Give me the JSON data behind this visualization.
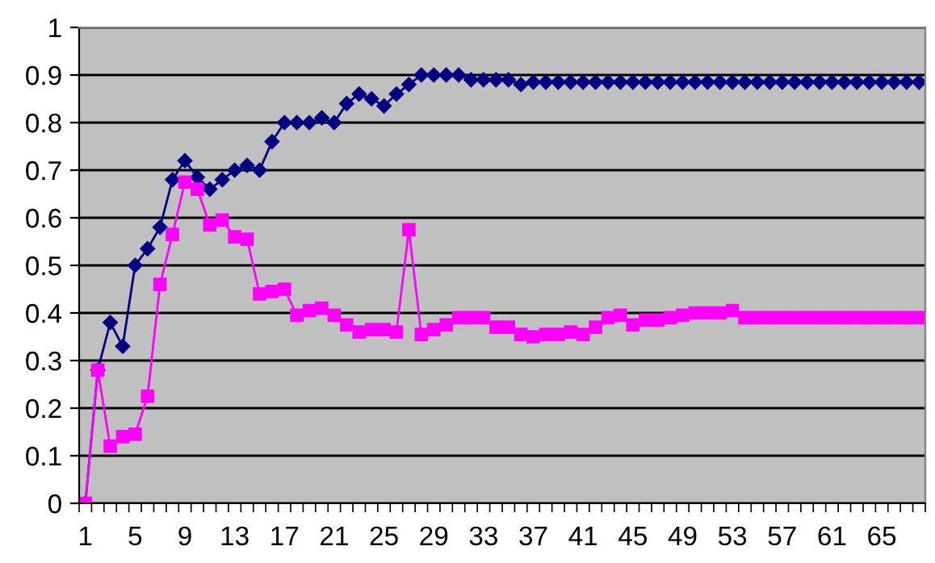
{
  "chart_data": {
    "type": "line",
    "categories": [
      "1",
      null,
      null,
      null,
      "5",
      null,
      null,
      null,
      "9",
      null,
      null,
      null,
      "13",
      null,
      null,
      null,
      "17",
      null,
      null,
      null,
      "21",
      null,
      null,
      null,
      "25",
      null,
      null,
      null,
      "29",
      null,
      null,
      null,
      "33",
      null,
      null,
      null,
      "37",
      null,
      null,
      null,
      "41",
      null,
      null,
      null,
      "45",
      null,
      null,
      null,
      "49",
      null,
      null,
      null,
      "53",
      null,
      null,
      null,
      "57",
      null,
      null,
      null,
      "61",
      null,
      null,
      null,
      "65",
      null,
      null,
      null
    ],
    "series": [
      {
        "color": "#000080",
        "marker": "diamond",
        "values": [
          0,
          0.28,
          0.38,
          0.33,
          0.5,
          0.535,
          0.58,
          0.68,
          0.72,
          0.685,
          0.66,
          0.68,
          0.7,
          0.71,
          0.7,
          0.76,
          0.8,
          0.8,
          0.8,
          0.81,
          0.8,
          0.84,
          0.86,
          0.85,
          0.835,
          0.86,
          0.88,
          0.9,
          0.9,
          0.9,
          0.9,
          0.89,
          0.89,
          0.89,
          0.89,
          0.88,
          0.885,
          0.885,
          0.885,
          0.885,
          0.885,
          0.885,
          0.885,
          0.885,
          0.885,
          0.885,
          0.885,
          0.885,
          0.885,
          0.885,
          0.885,
          0.885,
          0.885,
          0.885,
          0.885,
          0.885,
          0.885,
          0.885,
          0.885,
          0.885,
          0.885,
          0.885,
          0.885,
          0.885,
          0.885,
          0.885,
          0.885,
          0.885
        ]
      },
      {
        "color": "#ff00ff",
        "marker": "square",
        "values": [
          0,
          0.28,
          0.12,
          0.14,
          0.145,
          0.225,
          0.46,
          0.565,
          0.675,
          0.66,
          0.585,
          0.595,
          0.56,
          0.555,
          0.44,
          0.445,
          0.45,
          0.395,
          0.405,
          0.41,
          0.395,
          0.375,
          0.36,
          0.365,
          0.365,
          0.36,
          0.575,
          0.355,
          0.365,
          0.375,
          0.39,
          0.39,
          0.39,
          0.37,
          0.37,
          0.355,
          0.35,
          0.355,
          0.355,
          0.36,
          0.355,
          0.37,
          0.39,
          0.395,
          0.375,
          0.385,
          0.385,
          0.39,
          0.395,
          0.4,
          0.4,
          0.4,
          0.405,
          0.39,
          0.39,
          0.39,
          0.39,
          0.39,
          0.39,
          0.39,
          0.39,
          0.39,
          0.39,
          0.39,
          0.39,
          0.39,
          0.39,
          0.39
        ]
      }
    ],
    "ylim": [
      0,
      1
    ],
    "yticks": [
      0,
      0.1,
      0.2,
      0.3,
      0.4,
      0.5,
      0.6,
      0.7,
      0.8,
      0.9,
      1
    ],
    "grid": "y"
  }
}
